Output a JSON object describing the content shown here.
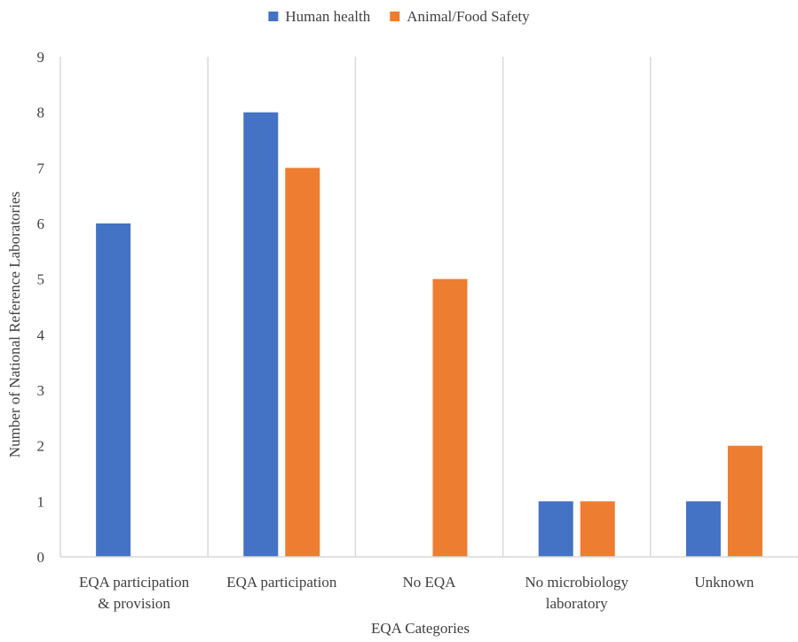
{
  "chart_data": {
    "type": "bar",
    "title": "",
    "xlabel": "EQA Categories",
    "ylabel": "Number of National Reference Laboratories",
    "ylim": [
      0,
      9
    ],
    "yticks": [
      0,
      1,
      2,
      3,
      4,
      5,
      6,
      7,
      8,
      9
    ],
    "grid": "vertical separators",
    "legend_position": "top-center",
    "categories": [
      [
        "EQA participation",
        "& provision"
      ],
      [
        "EQA participation"
      ],
      [
        "No EQA"
      ],
      [
        "No microbiology",
        "laboratory"
      ],
      [
        "Unknown"
      ]
    ],
    "series": [
      {
        "name": "Human health",
        "color": "#4472C4",
        "values": [
          6,
          8,
          0,
          1,
          1
        ]
      },
      {
        "name": "Animal/Food Safety",
        "color": "#ED7D31",
        "values": [
          0,
          7,
          5,
          1,
          2
        ]
      }
    ]
  }
}
